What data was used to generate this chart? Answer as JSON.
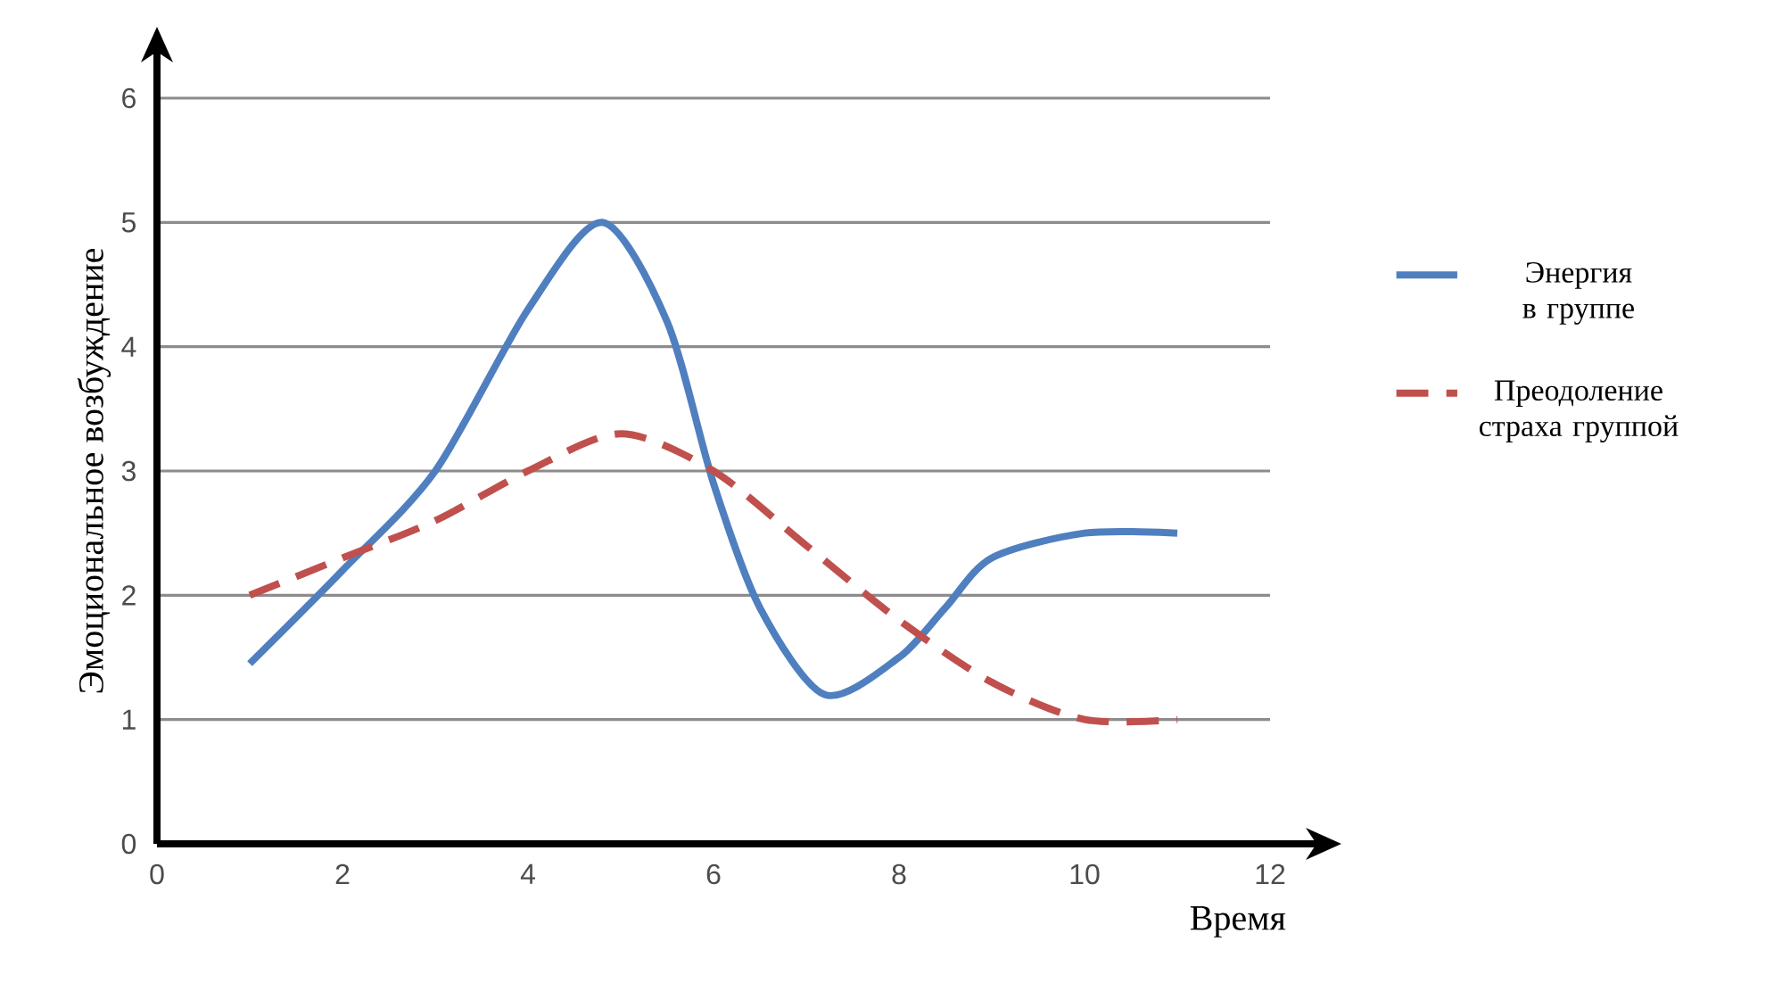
{
  "chart_data": {
    "type": "line",
    "xlabel": "Время",
    "ylabel": "Эмоциональное возбуждение",
    "xlim": [
      0,
      12
    ],
    "ylim": [
      0,
      6
    ],
    "xticks": [
      0,
      2,
      4,
      6,
      8,
      10,
      12
    ],
    "yticks": [
      0,
      1,
      2,
      3,
      4,
      5,
      6
    ],
    "grid": "y",
    "legend": "right",
    "marker": "none",
    "series": [
      {
        "name": "Энергия в группе",
        "color": "#4f7fbf",
        "line_style": "solid",
        "x": [
          1,
          2,
          3,
          4,
          4.8,
          5.5,
          6,
          6.5,
          7.2,
          8,
          8.5,
          9,
          10,
          11
        ],
        "values": [
          1.45,
          2.2,
          3.0,
          4.3,
          5.0,
          4.2,
          2.9,
          1.9,
          1.2,
          1.5,
          1.9,
          2.3,
          2.5,
          2.5
        ]
      },
      {
        "name": "Преодоление страха группой",
        "color": "#c0504d",
        "line_style": "dashed",
        "x": [
          1,
          2,
          3,
          4,
          5,
          6,
          7,
          8,
          9,
          10,
          11
        ],
        "values": [
          2.0,
          2.3,
          2.6,
          3.0,
          3.3,
          3.0,
          2.4,
          1.8,
          1.3,
          1.0,
          1.0
        ]
      }
    ]
  }
}
